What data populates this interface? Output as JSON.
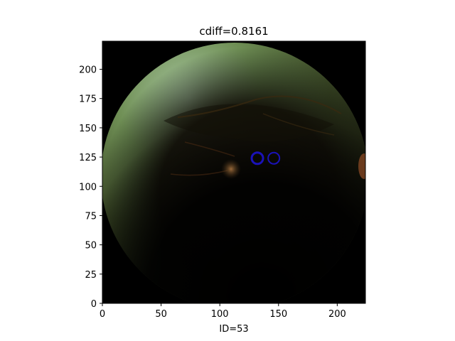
{
  "chart_data": {
    "type": "scatter",
    "title": "cdiff=0.8161",
    "xlabel": "ID=53",
    "ylabel": "",
    "xlim": [
      0,
      224
    ],
    "ylim": [
      0,
      224
    ],
    "xticks": [
      0,
      50,
      100,
      150,
      200
    ],
    "yticks": [
      0,
      25,
      50,
      75,
      100,
      125,
      150,
      175,
      200
    ],
    "grid": false,
    "background": "fundus retina photograph",
    "series": [
      {
        "marker": "circle-outline",
        "color": "#1a12b8",
        "points": [
          {
            "x": 132,
            "y": 124
          },
          {
            "x": 146,
            "y": 124
          }
        ]
      }
    ]
  }
}
